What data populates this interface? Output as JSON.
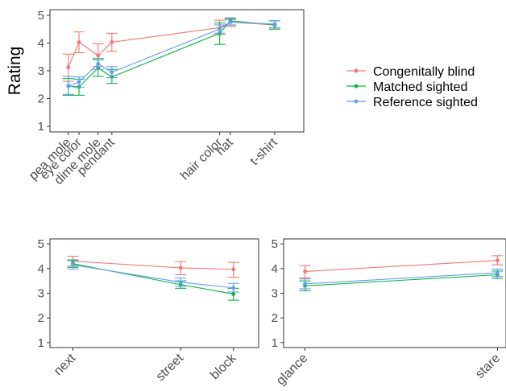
{
  "colors": {
    "Congenitally blind": "#F8766D",
    "Matched sighted": "#00BA38",
    "Reference sighted": "#619CFF"
  },
  "legend": {
    "placement": "right",
    "entries": [
      "Congenitally blind",
      "Matched sighted",
      "Reference sighted"
    ]
  },
  "chart_data": [
    {
      "type": "line",
      "panel": "top",
      "ylabel": "Rating",
      "xlabel": "",
      "ylim": [
        1,
        5
      ],
      "yticks": [
        1,
        2,
        3,
        4,
        5
      ],
      "categories": [
        "pea mole",
        "eye color",
        "dime mole",
        "pendant",
        "hair color",
        "hat",
        "t-shirt"
      ],
      "x": [
        0.55,
        1.25,
        2.5,
        3.4,
        10.45,
        11.15,
        14.05
      ],
      "xlim": [
        -0.65,
        15.95
      ],
      "series": [
        {
          "name": "Congenitally blind",
          "values": [
            3.12,
            4.03,
            3.55,
            4.03,
            4.55,
            4.75,
            4.65
          ],
          "lower": [
            2.62,
            3.65,
            3.15,
            3.7,
            4.3,
            4.6,
            4.5
          ],
          "upper": [
            3.6,
            4.4,
            3.97,
            4.35,
            4.82,
            4.88,
            4.8
          ]
        },
        {
          "name": "Matched sighted",
          "values": [
            2.45,
            2.42,
            3.1,
            2.78,
            4.35,
            4.8,
            4.65
          ],
          "lower": [
            2.12,
            2.12,
            2.8,
            2.55,
            3.95,
            4.65,
            4.5
          ],
          "upper": [
            2.72,
            2.7,
            3.4,
            3.05,
            4.72,
            4.9,
            4.8
          ]
        },
        {
          "name": "Reference sighted",
          "values": [
            2.45,
            2.6,
            3.25,
            2.95,
            4.5,
            4.75,
            4.68
          ],
          "lower": [
            2.15,
            2.4,
            3.05,
            2.75,
            4.35,
            4.65,
            4.55
          ],
          "upper": [
            2.8,
            2.78,
            3.45,
            3.15,
            4.65,
            4.85,
            4.8
          ]
        }
      ]
    },
    {
      "type": "line",
      "panel": "bottom-left",
      "ylim": [
        1,
        5
      ],
      "yticks": [
        1,
        2,
        3,
        4,
        5
      ],
      "categories": [
        "next",
        "street",
        "block"
      ],
      "x": [
        1.0,
        5.7,
        8.0
      ],
      "xlim": [
        0.0,
        9.1
      ],
      "series": [
        {
          "name": "Congenitally blind",
          "values": [
            4.3,
            4.03,
            3.97
          ],
          "lower": [
            4.1,
            3.75,
            3.65
          ],
          "upper": [
            4.5,
            4.28,
            4.25
          ]
        },
        {
          "name": "Matched sighted",
          "values": [
            4.2,
            3.35,
            2.97
          ],
          "lower": [
            4.05,
            3.2,
            2.72
          ],
          "upper": [
            4.35,
            3.5,
            3.2
          ]
        },
        {
          "name": "Reference sighted",
          "values": [
            4.15,
            3.45,
            3.22
          ],
          "lower": [
            3.98,
            3.28,
            3.05
          ],
          "upper": [
            4.32,
            3.62,
            3.4
          ]
        }
      ]
    },
    {
      "type": "line",
      "panel": "bottom-right",
      "ylim": [
        1,
        5
      ],
      "yticks": [
        1,
        2,
        3,
        4,
        5
      ],
      "categories": [
        "glance",
        "stare"
      ],
      "x": [
        1.0,
        10.0
      ],
      "xlim": [
        0.0,
        10.4
      ],
      "series": [
        {
          "name": "Congenitally blind",
          "values": [
            3.88,
            4.33
          ],
          "lower": [
            3.62,
            4.15
          ],
          "upper": [
            4.12,
            4.52
          ]
        },
        {
          "name": "Matched sighted",
          "values": [
            3.3,
            3.75
          ],
          "lower": [
            3.1,
            3.6
          ],
          "upper": [
            3.5,
            3.9
          ]
        },
        {
          "name": "Reference sighted",
          "values": [
            3.38,
            3.83
          ],
          "lower": [
            3.18,
            3.68
          ],
          "upper": [
            3.58,
            3.98
          ]
        }
      ]
    }
  ]
}
